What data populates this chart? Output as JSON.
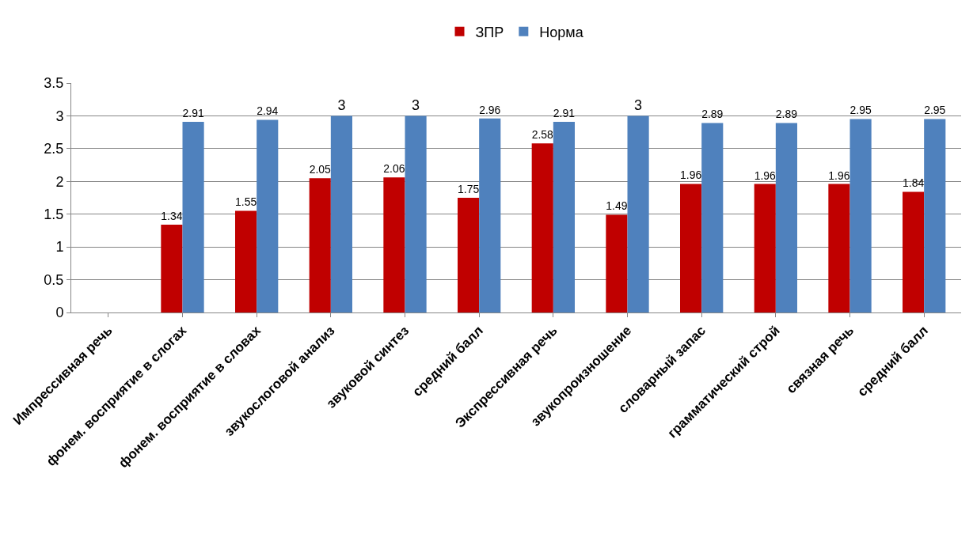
{
  "chart_data": {
    "type": "bar",
    "categories": [
      "Импрессивная речь",
      "фонем. восприятие в слогах",
      "фонем. восприятие в словах",
      "звукослоговой анализ",
      "звуковой синтез",
      "средний балл",
      "Экспрессивная речь",
      "звукопроизношение",
      "словарный запас",
      "грамматический строй",
      "связная речь",
      "средний балл"
    ],
    "series": [
      {
        "name": "ЗПР",
        "color": "#c00000",
        "values": [
          null,
          1.34,
          1.55,
          2.05,
          2.06,
          1.75,
          2.58,
          1.49,
          1.96,
          1.96,
          1.96,
          1.84
        ]
      },
      {
        "name": "Норма",
        "color": "#4f81bd",
        "values": [
          null,
          2.91,
          2.94,
          3,
          3,
          2.96,
          2.91,
          3,
          2.89,
          2.89,
          2.95,
          2.95
        ]
      }
    ],
    "ylim": [
      0,
      3.5
    ],
    "yticks": [
      0,
      0.5,
      1,
      1.5,
      2,
      2.5,
      3,
      3.5
    ],
    "grid": "y",
    "legend": "top",
    "data_labels": true
  }
}
